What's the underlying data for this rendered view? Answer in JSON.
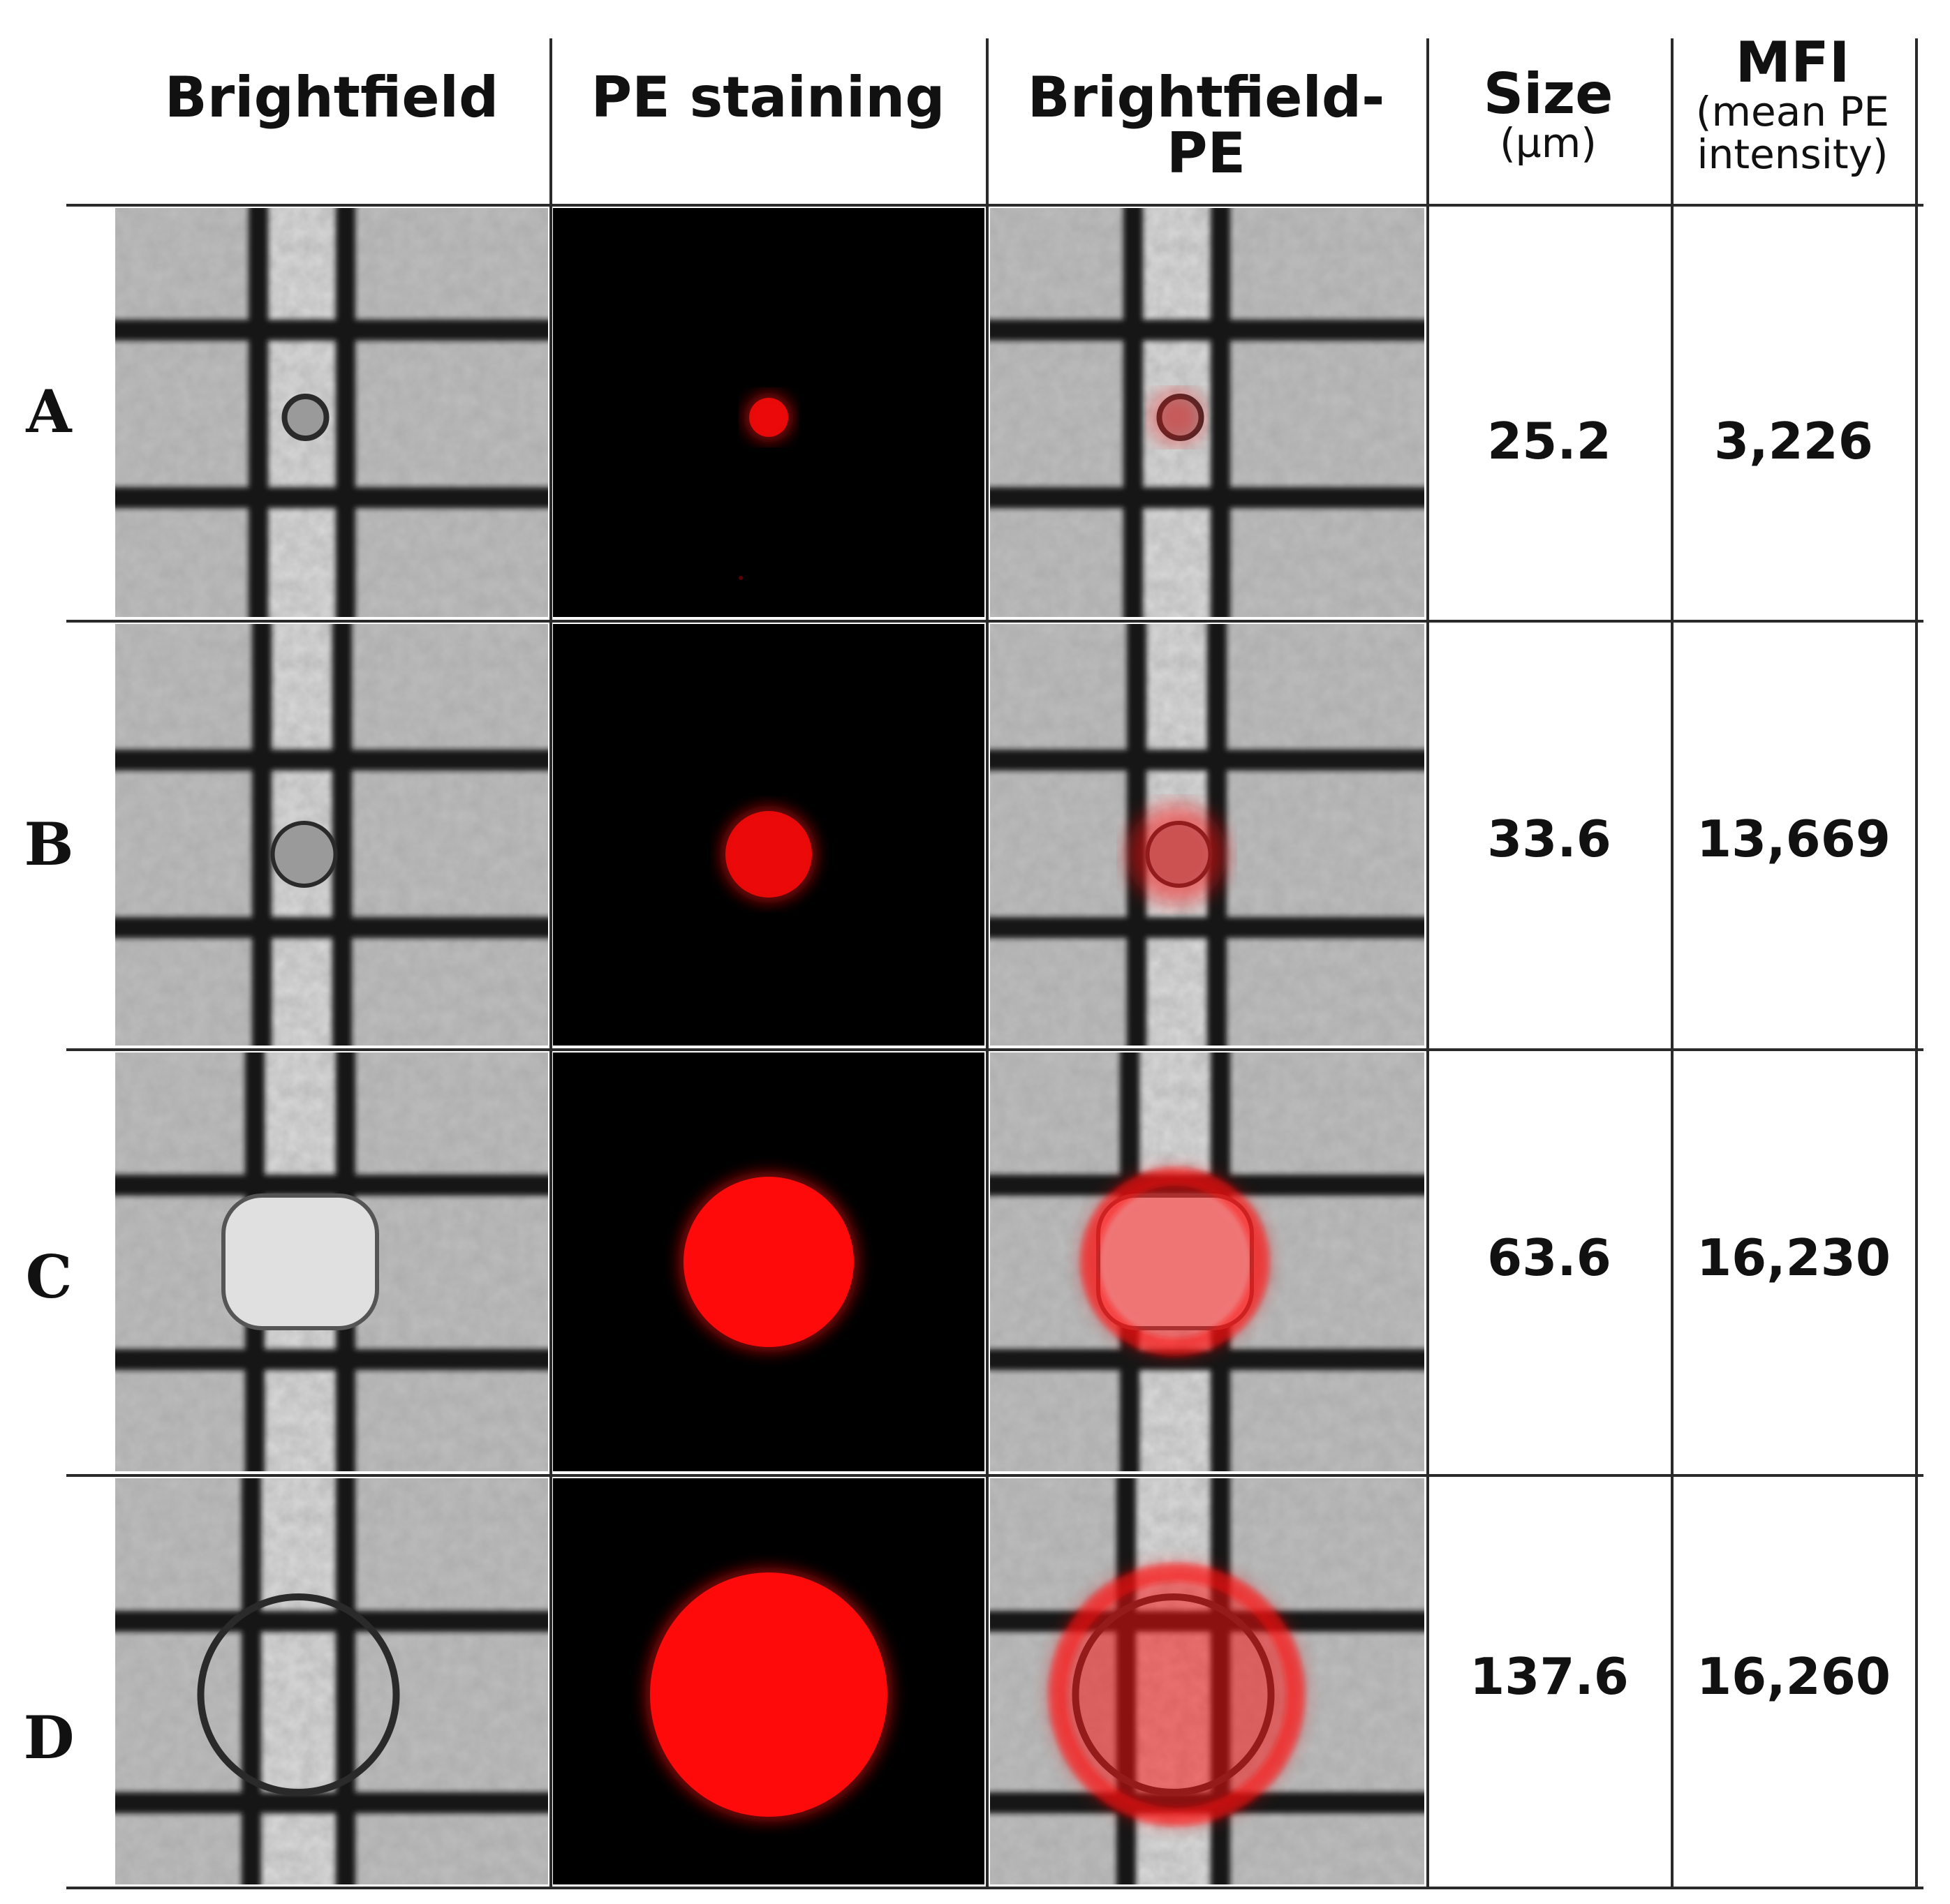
{
  "headers": {
    "brightfield": "Brightfield",
    "pe_staining": "PE staining",
    "merge": "Brightfield-PE",
    "size_title": "Size",
    "size_unit": "(µm)",
    "mfi_title": "MFI",
    "mfi_sub_1": "(mean PE",
    "mfi_sub_2": "intensity)"
  },
  "rows": [
    {
      "label": "A",
      "size": "25.2",
      "mfi": "3,226",
      "stain_level": 0.05
    },
    {
      "label": "B",
      "size": "33.6",
      "mfi": "13,669",
      "stain_level": 0.84
    },
    {
      "label": "C",
      "size": "63.6",
      "mfi": "16,230",
      "stain_level": 1.0
    },
    {
      "label": "D",
      "size": "137.6",
      "mfi": "16,260",
      "stain_level": 1.0
    }
  ],
  "colors": {
    "pe_red": "#ff0a0a",
    "grid_dark": "#151515",
    "background_black": "#000000"
  }
}
